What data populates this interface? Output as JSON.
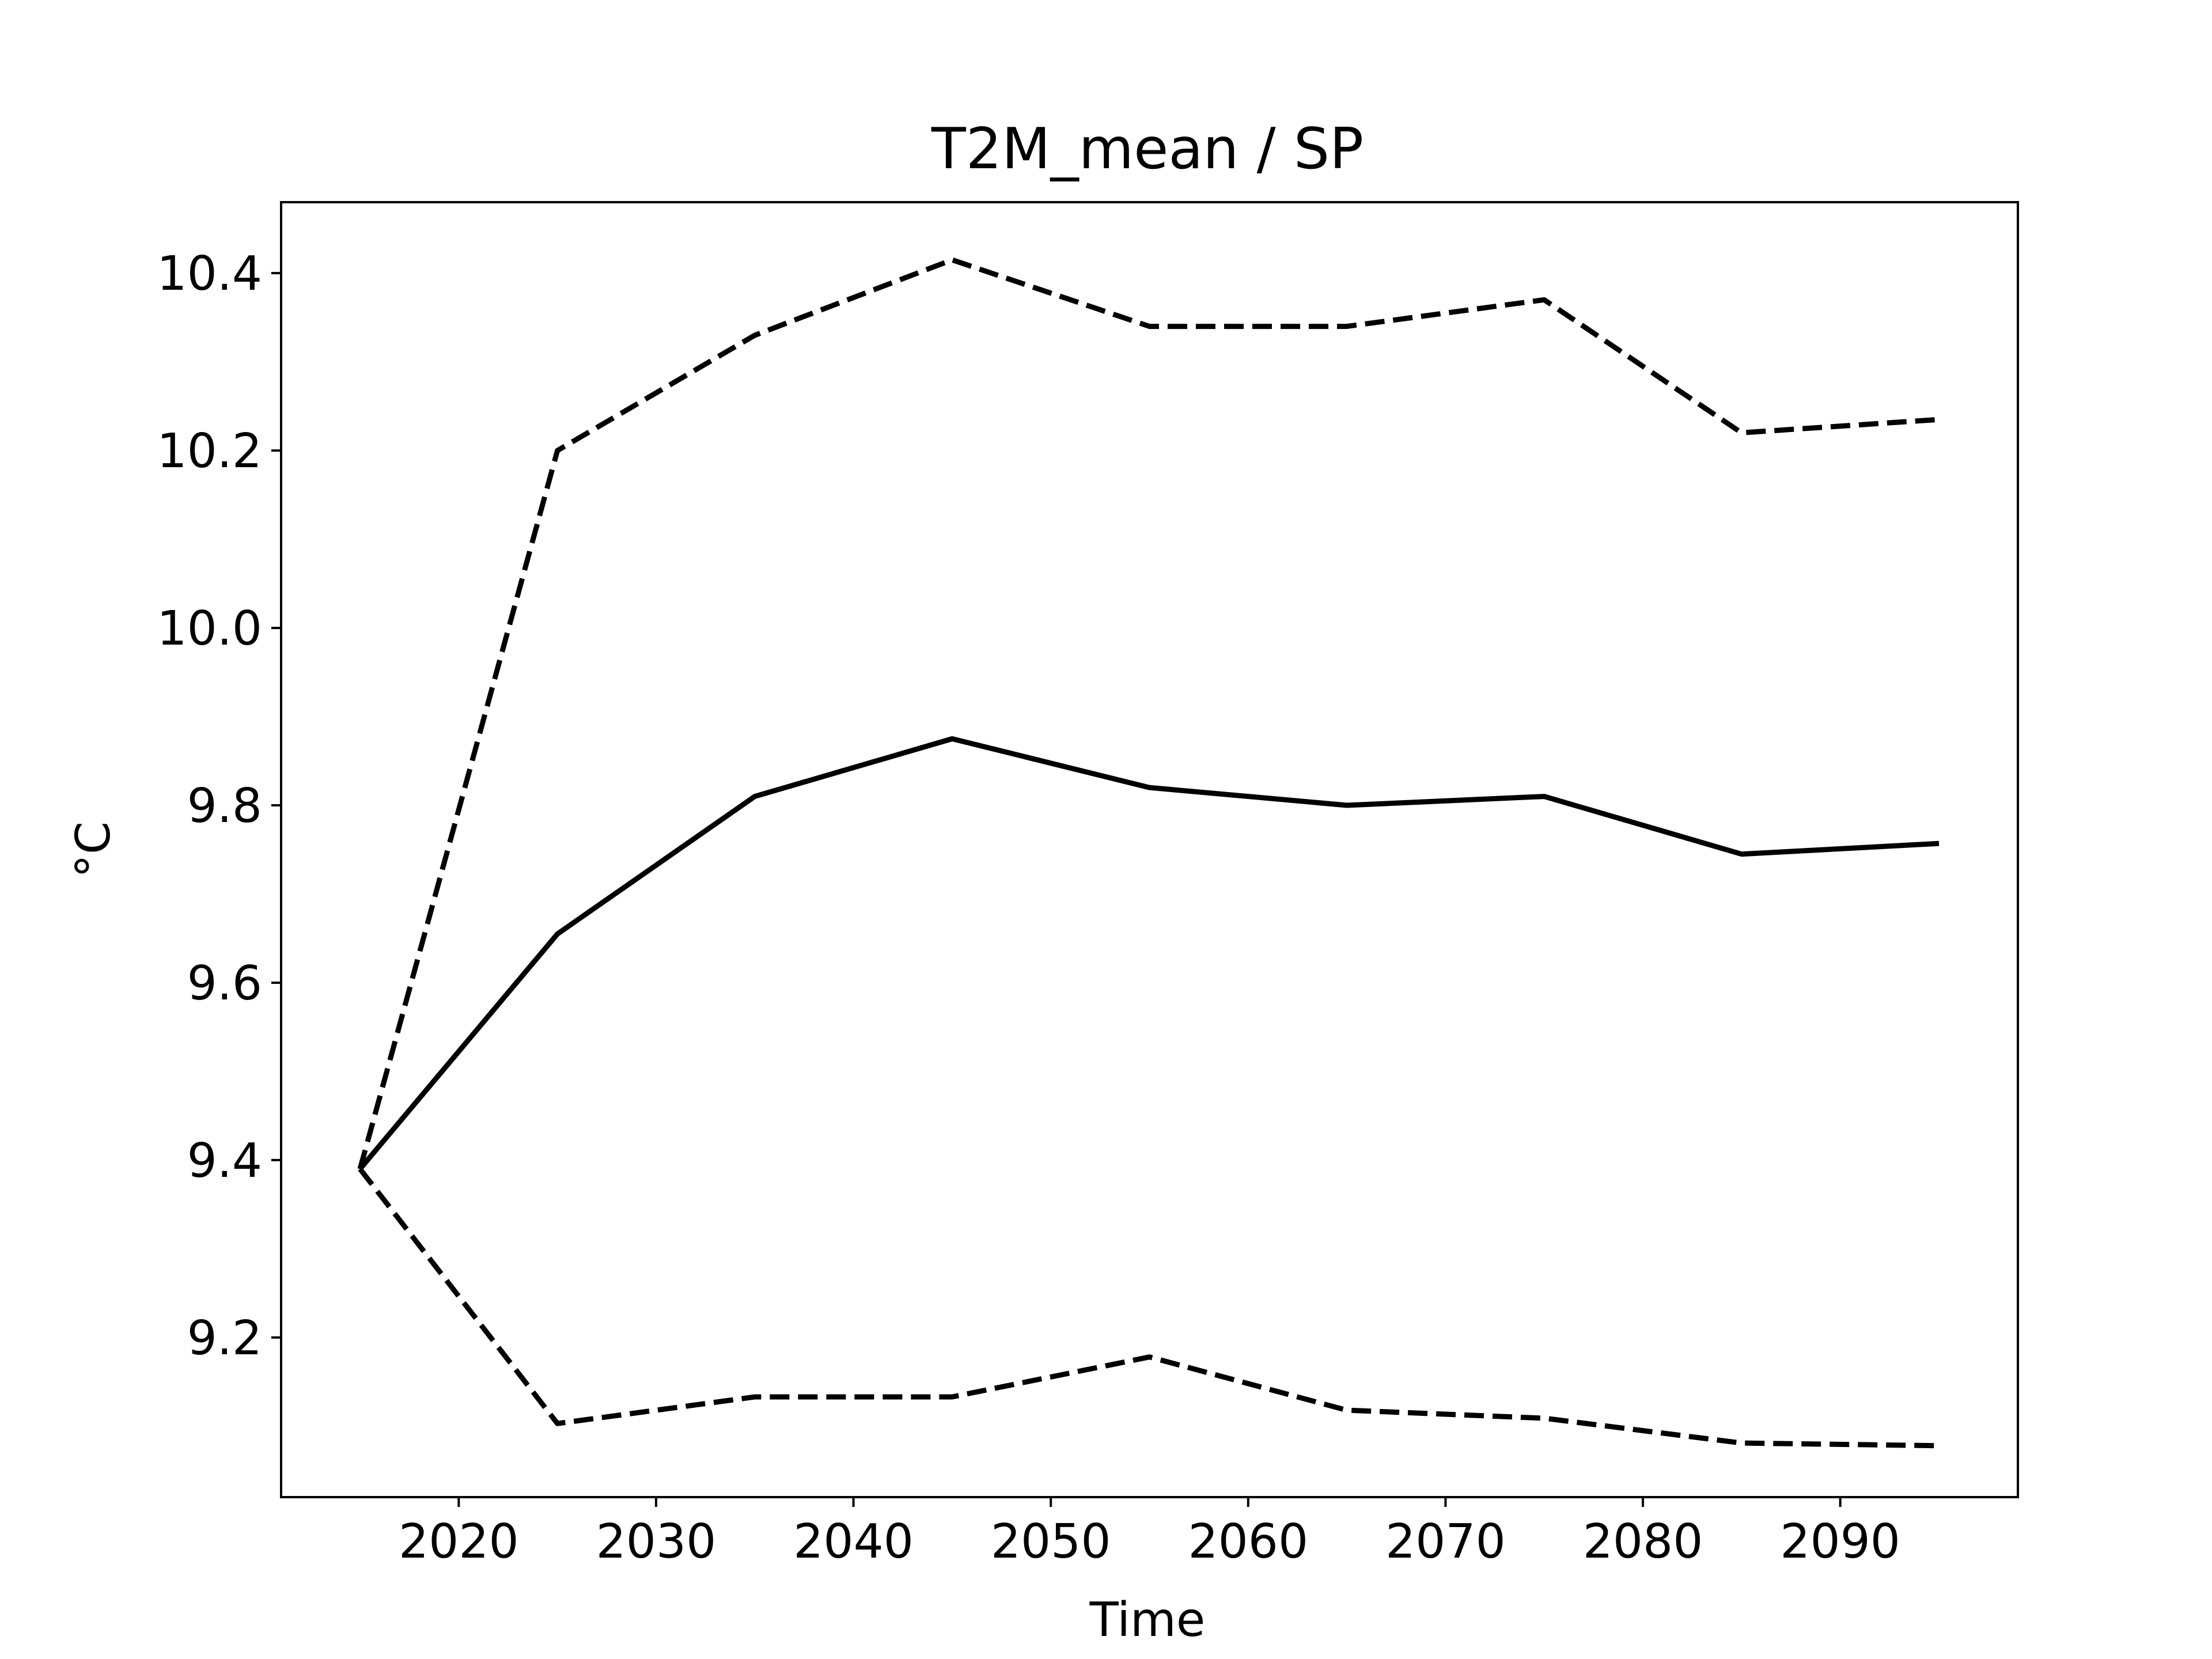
{
  "chart_data": {
    "type": "line",
    "title": "T2M_mean / SP",
    "xlabel": "Time",
    "ylabel": "°C",
    "xlim": [
      2011,
      2099
    ],
    "ylim": [
      9.02,
      10.48
    ],
    "xticks": [
      2020,
      2030,
      2040,
      2050,
      2060,
      2070,
      2080,
      2090
    ],
    "yticks": [
      9.2,
      9.4,
      9.6,
      9.8,
      10.0,
      10.2,
      10.4
    ],
    "ytick_labels": [
      "9.2",
      "9.4",
      "9.6",
      "9.8",
      "10.0",
      "10.2",
      "10.4"
    ],
    "grid": false,
    "x": [
      2015,
      2025,
      2035,
      2045,
      2055,
      2065,
      2075,
      2085,
      2095
    ],
    "series": [
      {
        "style": "dashed",
        "color": "#000000",
        "values": [
          9.39,
          10.2,
          10.33,
          10.415,
          10.34,
          10.34,
          10.37,
          10.22,
          10.235
        ]
      },
      {
        "style": "solid",
        "color": "#000000",
        "values": [
          9.39,
          9.655,
          9.81,
          9.875,
          9.82,
          9.8,
          9.81,
          9.745,
          9.757
        ]
      },
      {
        "style": "dashed",
        "color": "#000000",
        "values": [
          9.39,
          9.103,
          9.133,
          9.133,
          9.178,
          9.118,
          9.109,
          9.081,
          9.078
        ]
      }
    ]
  }
}
